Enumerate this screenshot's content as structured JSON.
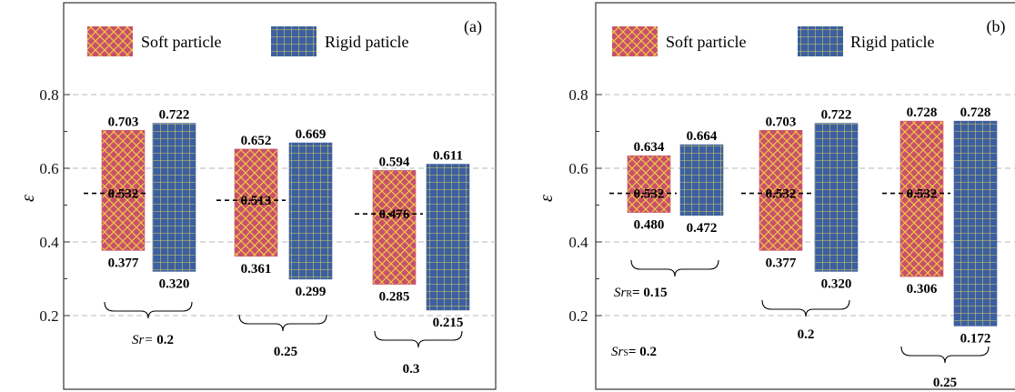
{
  "colors": {
    "soft_fill": "#c8506e",
    "soft_hatch": "#f1d13c",
    "rigid_fill": "#3c5fa0",
    "rigid_hatch": "#d9cf5a",
    "grid": "#b9b9b9",
    "axis": "#333333"
  },
  "chart_data": [
    {
      "type": "bar",
      "panel_label": "(a)",
      "ylabel": "ε",
      "ylim": [
        0.1,
        1.0
      ],
      "yticks": [
        "0.2",
        "0.4",
        "0.6",
        "0.8"
      ],
      "grid": "dashed horizontal at 0.2, 0.4, 0.6, 0.8",
      "legend": {
        "placement": "top",
        "entries": [
          "Soft particle",
          "Rigid paticle"
        ]
      },
      "groups": [
        {
          "label": "0.2",
          "label_prefix": "Sr= ",
          "mean": 0.532,
          "mean_label": "0.532",
          "soft": {
            "low": 0.377,
            "high": 0.703,
            "low_label": "0.377",
            "high_label": "0.703"
          },
          "rigid": {
            "low": 0.32,
            "high": 0.722,
            "low_label": "0.320",
            "high_label": "0.722"
          }
        },
        {
          "label": "0.25",
          "label_prefix": "",
          "mean": 0.513,
          "mean_label": "0.513",
          "soft": {
            "low": 0.361,
            "high": 0.652,
            "low_label": "0.361",
            "high_label": "0.652"
          },
          "rigid": {
            "low": 0.299,
            "high": 0.669,
            "low_label": "0.299",
            "high_label": "0.669"
          }
        },
        {
          "label": "0.3",
          "label_prefix": "",
          "mean": 0.476,
          "mean_label": "0.476",
          "soft": {
            "low": 0.285,
            "high": 0.594,
            "low_label": "0.285",
            "high_label": "0.594"
          },
          "rigid": {
            "low": 0.215,
            "high": 0.611,
            "low_label": "0.215",
            "high_label": "0.611"
          }
        }
      ]
    },
    {
      "type": "bar",
      "panel_label": "(b)",
      "ylabel": "ε",
      "ylim": [
        0.1,
        1.0
      ],
      "yticks": [
        "0.2",
        "0.4",
        "0.6",
        "0.8"
      ],
      "grid": "dashed horizontal at 0.2, 0.4, 0.6, 0.8",
      "legend": {
        "placement": "top",
        "entries": [
          "Soft particle",
          "Rigid paticle"
        ]
      },
      "annotations": {
        "srr_label": "0.15",
        "srs_label": "0.2"
      },
      "groups": [
        {
          "label": "",
          "mean": 0.532,
          "mean_label": "0.532",
          "soft": {
            "low": 0.48,
            "high": 0.634,
            "low_label": "0.480",
            "high_label": "0.634"
          },
          "rigid": {
            "low": 0.472,
            "high": 0.664,
            "low_label": "0.472",
            "high_label": "0.664"
          }
        },
        {
          "label": "0.2",
          "mean": 0.532,
          "mean_label": "0.532",
          "soft": {
            "low": 0.377,
            "high": 0.703,
            "low_label": "0.377",
            "high_label": "0.703"
          },
          "rigid": {
            "low": 0.32,
            "high": 0.722,
            "low_label": "0.320",
            "high_label": "0.722"
          }
        },
        {
          "label": "0.25",
          "mean": 0.532,
          "mean_label": "0.532",
          "soft": {
            "low": 0.306,
            "high": 0.728,
            "low_label": "0.306",
            "high_label": "0.728"
          },
          "rigid": {
            "low": 0.172,
            "high": 0.728,
            "low_label": "0.172",
            "high_label": "0.728"
          }
        }
      ]
    }
  ]
}
